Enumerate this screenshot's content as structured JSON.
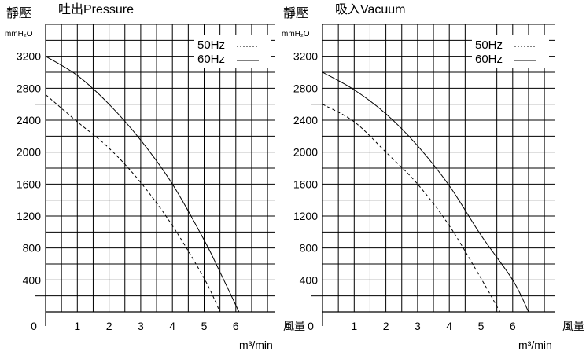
{
  "chart_data": [
    {
      "type": "line",
      "title": "吐出Pressure",
      "ylabel": "靜壓",
      "yunit": "mmH₂O",
      "xlabel": "風量",
      "xunit": "m³/min",
      "xlim": [
        0,
        7.2
      ],
      "ylim": [
        0,
        3600
      ],
      "x_ticks": [
        "0",
        "1",
        "2",
        "3",
        "4",
        "5",
        "6"
      ],
      "y_ticks": [
        "400",
        "800",
        "1200",
        "1600",
        "2000",
        "2400",
        "2800",
        "3200"
      ],
      "grid": true,
      "legend_position": "top-right",
      "series": [
        {
          "name": "50Hz",
          "line": "dashed",
          "x": [
            0,
            1,
            2,
            3,
            4,
            5,
            5.5
          ],
          "y": [
            2720,
            2380,
            2050,
            1620,
            1080,
            420,
            0
          ]
        },
        {
          "name": "60Hz",
          "line": "solid",
          "x": [
            0,
            1,
            2,
            3,
            4,
            5,
            5.5,
            6.1
          ],
          "y": [
            3200,
            2960,
            2600,
            2150,
            1600,
            900,
            500,
            0
          ]
        }
      ]
    },
    {
      "type": "line",
      "title": "吸入Vacuum",
      "ylabel": "靜壓",
      "yunit": "mmH₂O",
      "xlabel": "風量",
      "xunit": "m³/min",
      "xlim": [
        0,
        7.2
      ],
      "ylim": [
        0,
        3600
      ],
      "x_ticks": [
        "0",
        "1",
        "2",
        "3",
        "4",
        "5",
        "6"
      ],
      "y_ticks": [
        "400",
        "800",
        "1200",
        "1600",
        "2000",
        "2400",
        "2800",
        "3200"
      ],
      "grid": true,
      "legend_position": "top-right",
      "series": [
        {
          "name": "50Hz",
          "line": "dashed",
          "x": [
            0,
            1,
            2,
            3,
            4,
            5,
            5.6
          ],
          "y": [
            2600,
            2380,
            2000,
            1600,
            1080,
            420,
            0
          ]
        },
        {
          "name": "60Hz",
          "line": "solid",
          "x": [
            0,
            1,
            2,
            3,
            4,
            5,
            6,
            6.5
          ],
          "y": [
            3000,
            2780,
            2480,
            2080,
            1580,
            960,
            400,
            0
          ]
        }
      ]
    }
  ]
}
